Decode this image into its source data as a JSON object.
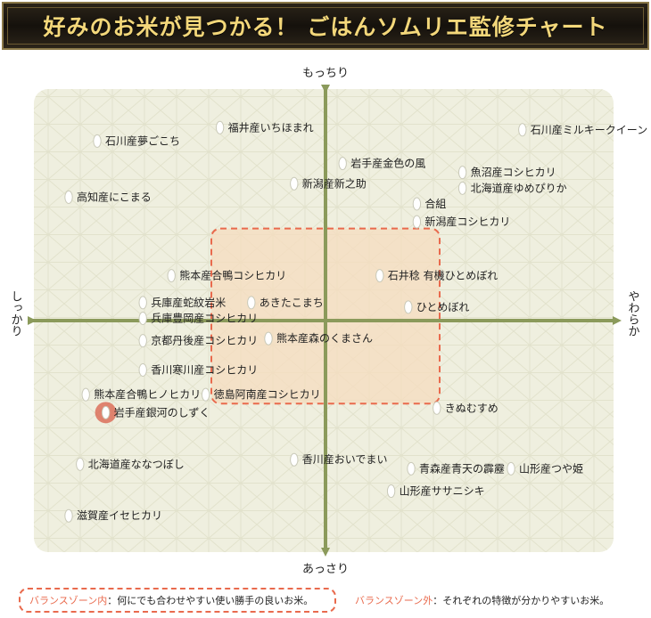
{
  "title": "好みのお米が見つかる！ ごはんソムリエ監修チャート",
  "chart_data": {
    "type": "scatter",
    "axes": {
      "top": "もっちり",
      "bottom": "あっさり",
      "left": "しっかり",
      "right": "やわらか"
    },
    "xlim": [
      -10,
      10
    ],
    "ylim": [
      -10,
      10
    ],
    "grid": false,
    "balance_zone": {
      "x": [
        -4,
        4
      ],
      "y": [
        -3.7,
        4.1
      ]
    },
    "highlight": "岩手産銀河のしずく",
    "points": [
      {
        "label": "福井産いちほまれ",
        "x": -3.7,
        "y": 8.6
      },
      {
        "label": "石川産ミルキークイーン",
        "x": 6.9,
        "y": 8.5
      },
      {
        "label": "石川産夢ごこち",
        "x": -8.0,
        "y": 8.0
      },
      {
        "label": "岩手産金色の風",
        "x": 0.6,
        "y": 7.0
      },
      {
        "label": "魚沼産コシヒカリ",
        "x": 4.8,
        "y": 6.6
      },
      {
        "label": "新潟産新之助",
        "x": -1.1,
        "y": 6.1
      },
      {
        "label": "北海道産ゆめぴりか",
        "x": 4.8,
        "y": 5.9
      },
      {
        "label": "高知産にこまる",
        "x": -9.0,
        "y": 5.5
      },
      {
        "label": "合組",
        "x": 3.2,
        "y": 5.2
      },
      {
        "label": "新潟産コシヒカリ",
        "x": 3.2,
        "y": 4.4
      },
      {
        "label": "熊本産合鴨コシヒカリ",
        "x": -5.4,
        "y": 2.0
      },
      {
        "label": "石井稔 有機ひとめぼれ",
        "x": 1.9,
        "y": 2.0
      },
      {
        "label": "兵庫産蛇紋岩米",
        "x": -6.4,
        "y": 0.8
      },
      {
        "label": "あきたこまち",
        "x": -2.6,
        "y": 0.8
      },
      {
        "label": "ひとめぼれ",
        "x": 2.9,
        "y": 0.6
      },
      {
        "label": "兵庫豊岡産コシヒカリ",
        "x": -6.4,
        "y": 0.1
      },
      {
        "label": "京都丹後産コシヒカリ",
        "x": -6.4,
        "y": -0.9
      },
      {
        "label": "熊本産森のくまさん",
        "x": -2.0,
        "y": -0.8
      },
      {
        "label": "香川寒川産コシヒカリ",
        "x": -6.4,
        "y": -2.2
      },
      {
        "label": "熊本産合鴨ヒノヒカリ",
        "x": -8.4,
        "y": -3.3
      },
      {
        "label": "徳島阿南産コシヒカリ",
        "x": -4.2,
        "y": -3.3
      },
      {
        "label": "岩手産銀河のしずく",
        "x": -7.7,
        "y": -4.1
      },
      {
        "label": "きぬむすめ",
        "x": 3.9,
        "y": -3.9
      },
      {
        "label": "香川産おいでまい",
        "x": -1.1,
        "y": -6.2
      },
      {
        "label": "北海道産ななつぼし",
        "x": -8.6,
        "y": -6.4
      },
      {
        "label": "青森産青天の霹靂",
        "x": 3.0,
        "y": -6.6
      },
      {
        "label": "山形産つや姫",
        "x": 6.5,
        "y": -6.6
      },
      {
        "label": "山形産ササニシキ",
        "x": 2.3,
        "y": -7.6
      },
      {
        "label": "滋賀産イセヒカリ",
        "x": -9.0,
        "y": -8.7
      }
    ]
  },
  "legend": {
    "inside_key": "バランスゾーン内",
    "inside_text": "：何にでも合わせやすい使い勝手の良いお米。",
    "outside_key": "バランスゾーン外",
    "outside_text": "：それぞれの特徴が分かりやすいお米。"
  },
  "colors": {
    "panel": "#efefdf",
    "axis": "#8b9a5b",
    "zone_fill": "#f6dcbf",
    "zone_border": "#e96a4d",
    "highlight": "#d95f4a"
  }
}
